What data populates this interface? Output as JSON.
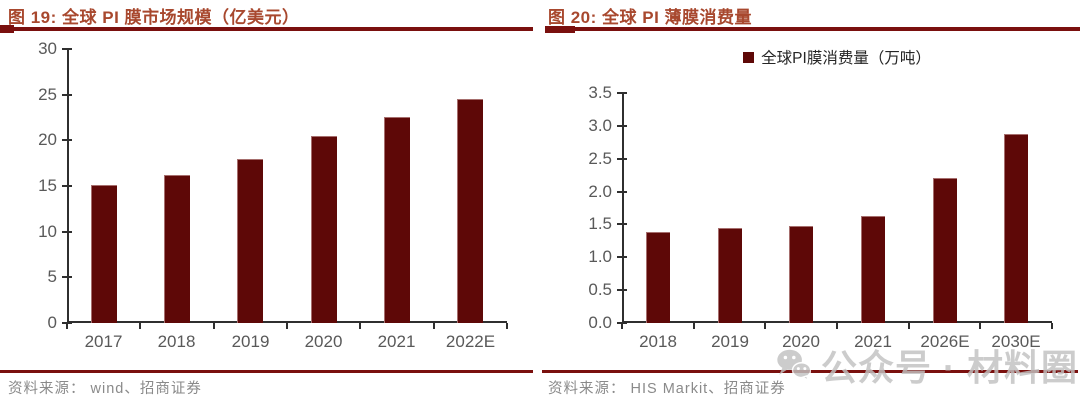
{
  "colors": {
    "bar": "#5e0807",
    "bar_edge": "rgba(255,235,235,0.45)",
    "title": "#a8482e",
    "rule": "#7a100e",
    "axis": "#2f2f2f",
    "tick_label": "#595959",
    "legend_text": "#262626",
    "source_text": "#8a8a8a",
    "watermark": "#c2c2c2"
  },
  "panels": [
    {
      "title": "图 19:  全球 PI 膜市场规模（亿美元）",
      "source": "资料来源：  wind、招商证券"
    },
    {
      "title": "图 20:  全球 PI 薄膜消费量",
      "legend": "全球PI膜消费量（万吨）",
      "source": "资料来源：  HIS Markit、招商证券"
    }
  ],
  "chart_data": [
    {
      "type": "bar",
      "title": "图 19: 全球 PI 膜市场规模（亿美元）",
      "categories": [
        "2017",
        "2018",
        "2019",
        "2020",
        "2021",
        "2022E"
      ],
      "values": [
        15.1,
        16.2,
        18.0,
        20.5,
        22.5,
        24.5
      ],
      "xlabel": "",
      "ylabel": "",
      "ylim": [
        0,
        30
      ],
      "ytick_step": 5,
      "yticks": [
        "0",
        "5",
        "10",
        "15",
        "20",
        "25",
        "30"
      ],
      "grid": false,
      "legend_position": "none",
      "source": "资料来源：wind、招商证券"
    },
    {
      "type": "bar",
      "title": "图 20: 全球 PI 薄膜消费量",
      "series": [
        {
          "name": "全球PI膜消费量（万吨）",
          "values": [
            1.39,
            1.45,
            1.48,
            1.63,
            2.21,
            2.87
          ]
        }
      ],
      "categories": [
        "2018",
        "2019",
        "2020",
        "2021",
        "2026E",
        "2030E"
      ],
      "values": [
        1.39,
        1.45,
        1.48,
        1.63,
        2.21,
        2.87
      ],
      "xlabel": "",
      "ylabel": "",
      "ylim": [
        0,
        3.5
      ],
      "ytick_step": 0.5,
      "yticks": [
        "0.0",
        "0.5",
        "1.0",
        "1.5",
        "2.0",
        "2.5",
        "3.0",
        "3.5"
      ],
      "grid": false,
      "legend_position": "top",
      "source": "资料来源：HIS Markit、招商证券"
    }
  ],
  "watermark": {
    "icon": "wechat-icon",
    "text": "公众号 · 材料圈"
  }
}
